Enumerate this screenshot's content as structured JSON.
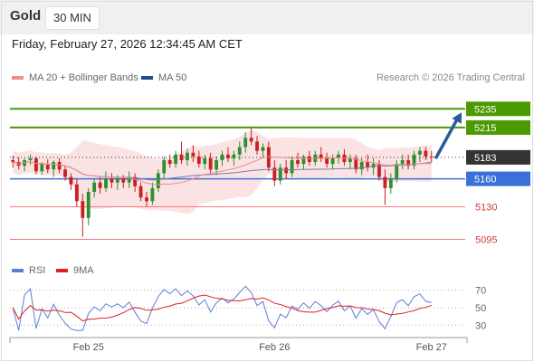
{
  "header": {
    "instrument": "Gold",
    "timeframe": "30 MIN"
  },
  "timestamp": "Friday, February 27, 2026 12:34:45 AM CET",
  "legend": {
    "items": [
      {
        "label": "MA 20 + Bollinger Bands",
        "color": "#f28b8b"
      },
      {
        "label": "MA 50",
        "color": "#1f4e8c"
      }
    ]
  },
  "credit": "Research © 2026 Trading Central",
  "rsi_legend": {
    "items": [
      {
        "label": "RSI",
        "color": "#5b7fd6"
      },
      {
        "label": "9MA",
        "color": "#e02020"
      }
    ]
  },
  "colors": {
    "resistance": "#4a9a00",
    "current": "#333333",
    "pivot": "#3b6fd9",
    "support": "#f27a7a",
    "support_text": "#d23a3a",
    "candle_up": "#2f8f2f",
    "candle_down": "#cc1f1f",
    "band_fill": "#fbe0e0",
    "ma20": "#f28b8b",
    "ma50": "#6b7fae",
    "arrow": "#2b5a9a"
  },
  "chart_data": [
    {
      "type": "candlestick",
      "x_ticks": [
        "Feb 25",
        "Feb 26",
        "Feb 27"
      ],
      "y_range": [
        5080,
        5245
      ],
      "levels": [
        {
          "value": 5235,
          "label": "5235",
          "kind": "resistance"
        },
        {
          "value": 5215,
          "label": "5215",
          "kind": "resistance"
        },
        {
          "value": 5183,
          "label": "5183",
          "kind": "current"
        },
        {
          "value": 5160,
          "label": "5160",
          "kind": "pivot"
        },
        {
          "value": 5130,
          "label": "5130",
          "kind": "support"
        },
        {
          "value": 5095,
          "label": "5095",
          "kind": "support"
        }
      ],
      "target_arrow": {
        "from": 5183,
        "to": 5235
      },
      "series": [
        {
          "name": "MA 20 + Bollinger Bands"
        },
        {
          "name": "MA 50"
        }
      ],
      "ohlc": [
        [
          5180,
          5185,
          5172,
          5178
        ],
        [
          5178,
          5183,
          5170,
          5174
        ],
        [
          5174,
          5182,
          5168,
          5180
        ],
        [
          5180,
          5186,
          5175,
          5182
        ],
        [
          5182,
          5184,
          5165,
          5168
        ],
        [
          5168,
          5178,
          5164,
          5176
        ],
        [
          5176,
          5181,
          5166,
          5170
        ],
        [
          5170,
          5180,
          5162,
          5178
        ],
        [
          5178,
          5182,
          5166,
          5170
        ],
        [
          5170,
          5174,
          5158,
          5162
        ],
        [
          5162,
          5166,
          5148,
          5154
        ],
        [
          5154,
          5160,
          5130,
          5136
        ],
        [
          5136,
          5144,
          5098,
          5118
        ],
        [
          5118,
          5150,
          5110,
          5146
        ],
        [
          5146,
          5160,
          5140,
          5156
        ],
        [
          5156,
          5162,
          5144,
          5150
        ],
        [
          5150,
          5168,
          5146,
          5160
        ],
        [
          5160,
          5166,
          5150,
          5156
        ],
        [
          5156,
          5164,
          5148,
          5160
        ],
        [
          5160,
          5164,
          5150,
          5156
        ],
        [
          5156,
          5168,
          5150,
          5162
        ],
        [
          5162,
          5166,
          5146,
          5152
        ],
        [
          5152,
          5156,
          5136,
          5140
        ],
        [
          5140,
          5146,
          5130,
          5136
        ],
        [
          5136,
          5156,
          5132,
          5150
        ],
        [
          5150,
          5170,
          5146,
          5166
        ],
        [
          5166,
          5184,
          5160,
          5180
        ],
        [
          5180,
          5186,
          5172,
          5176
        ],
        [
          5176,
          5190,
          5172,
          5186
        ],
        [
          5186,
          5200,
          5176,
          5180
        ],
        [
          5180,
          5192,
          5174,
          5188
        ],
        [
          5188,
          5196,
          5178,
          5184
        ],
        [
          5184,
          5190,
          5172,
          5176
        ],
        [
          5176,
          5186,
          5170,
          5182
        ],
        [
          5182,
          5188,
          5166,
          5170
        ],
        [
          5170,
          5184,
          5164,
          5180
        ],
        [
          5180,
          5190,
          5174,
          5186
        ],
        [
          5186,
          5194,
          5178,
          5182
        ],
        [
          5182,
          5190,
          5174,
          5186
        ],
        [
          5186,
          5200,
          5180,
          5194
        ],
        [
          5194,
          5210,
          5188,
          5204
        ],
        [
          5204,
          5214,
          5196,
          5200
        ],
        [
          5200,
          5206,
          5186,
          5190
        ],
        [
          5190,
          5198,
          5182,
          5194
        ],
        [
          5194,
          5200,
          5168,
          5172
        ],
        [
          5172,
          5180,
          5152,
          5158
        ],
        [
          5158,
          5176,
          5154,
          5172
        ],
        [
          5172,
          5180,
          5160,
          5166
        ],
        [
          5166,
          5184,
          5162,
          5180
        ],
        [
          5180,
          5188,
          5172,
          5176
        ],
        [
          5176,
          5186,
          5170,
          5184
        ],
        [
          5184,
          5190,
          5174,
          5178
        ],
        [
          5178,
          5190,
          5174,
          5186
        ],
        [
          5186,
          5194,
          5178,
          5182
        ],
        [
          5182,
          5188,
          5172,
          5176
        ],
        [
          5176,
          5186,
          5170,
          5182
        ],
        [
          5182,
          5190,
          5176,
          5186
        ],
        [
          5186,
          5192,
          5174,
          5178
        ],
        [
          5178,
          5186,
          5170,
          5182
        ],
        [
          5182,
          5186,
          5166,
          5170
        ],
        [
          5170,
          5182,
          5164,
          5178
        ],
        [
          5178,
          5186,
          5168,
          5172
        ],
        [
          5172,
          5182,
          5164,
          5176
        ],
        [
          5176,
          5180,
          5158,
          5162
        ],
        [
          5162,
          5170,
          5132,
          5150
        ],
        [
          5150,
          5166,
          5144,
          5160
        ],
        [
          5160,
          5180,
          5156,
          5176
        ],
        [
          5176,
          5186,
          5170,
          5180
        ],
        [
          5180,
          5186,
          5170,
          5174
        ],
        [
          5174,
          5190,
          5170,
          5186
        ],
        [
          5186,
          5194,
          5178,
          5190
        ],
        [
          5190,
          5194,
          5180,
          5184
        ],
        [
          5184,
          5190,
          5178,
          5183
        ]
      ]
    },
    {
      "type": "line",
      "name": "RSI",
      "y_ticks": [
        70,
        50,
        30
      ],
      "y_range": [
        22,
        78
      ],
      "series": [
        {
          "name": "RSI"
        },
        {
          "name": "9MA"
        }
      ]
    }
  ]
}
